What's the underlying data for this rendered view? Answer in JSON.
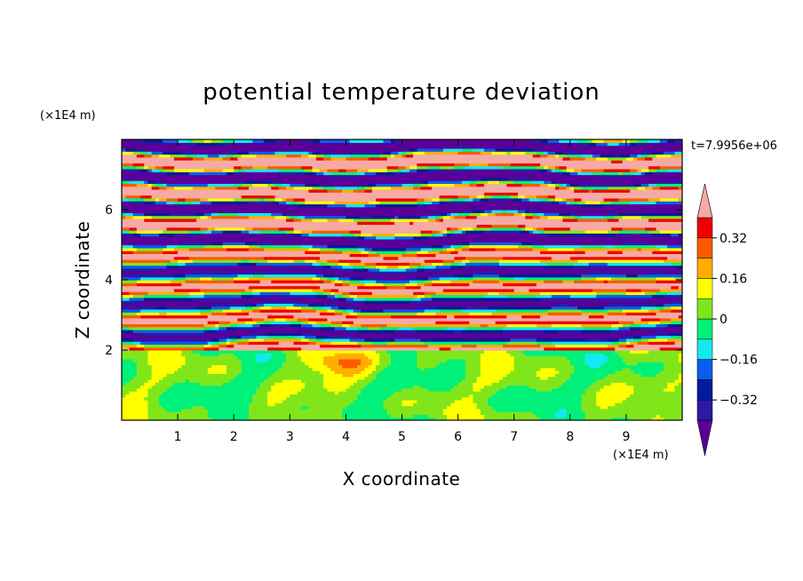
{
  "chart_data": {
    "type": "heatmap",
    "title": "potential temperature deviation",
    "xlabel": "X coordinate",
    "ylabel": "Z coordinate",
    "x_unit": "(×1E4 m)",
    "y_unit": "(×1E4 m)",
    "time_label": "t=7.9956e+06",
    "xlim": [
      0,
      10
    ],
    "ylim": [
      0,
      8
    ],
    "x_ticks": [
      "1",
      "2",
      "3",
      "4",
      "5",
      "6",
      "7",
      "8",
      "9"
    ],
    "y_ticks": [
      "2",
      "4",
      "6"
    ],
    "colorbar": {
      "ticks": [
        "0.32",
        "0.16",
        "0",
        "−0.16",
        "−0.32"
      ],
      "tick_values": [
        0.32,
        0.16,
        0,
        -0.16,
        -0.32
      ],
      "levels": [
        -0.4,
        -0.32,
        -0.24,
        -0.16,
        -0.08,
        0,
        0.08,
        0.16,
        0.24,
        0.32,
        0.4
      ],
      "colors": [
        "#5a0098",
        "#2b1aa8",
        "#001c9c",
        "#0a5cf0",
        "#14e8f0",
        "#00f07a",
        "#80e61a",
        "#ffff00",
        "#ffae00",
        "#ff5a00",
        "#f00000",
        "#f5aaa6"
      ],
      "extend": "both"
    },
    "regions": {
      "lower_layer": {
        "z_range": [
          0,
          2
        ],
        "range": [
          -0.04,
          0.3
        ]
      },
      "middle_layer": {
        "z_range": [
          2,
          5
        ],
        "range": [
          -0.4,
          0.4
        ]
      },
      "upper_layer": {
        "z_range": [
          5,
          8
        ],
        "range": [
          -0.4,
          0.4
        ]
      }
    }
  }
}
